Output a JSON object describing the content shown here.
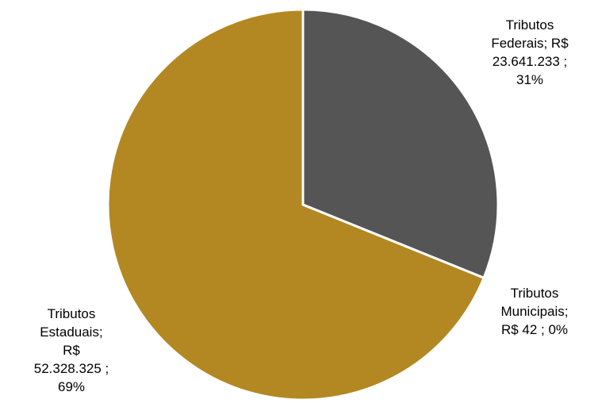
{
  "chart_data": {
    "type": "pie",
    "title": "",
    "series": [
      {
        "values": [
          {
            "category": "Tributos Federais",
            "value": 23641233,
            "percent": 31,
            "label": "Tributos\nFederais;  R$\n23.641.233 ;\n31%",
            "color": "#555555"
          },
          {
            "category": "Tributos Municipais",
            "value": 42,
            "percent": 0,
            "label": "Tributos\nMunicipais;\nR$ 42 ; 0%",
            "color": "#ffffff"
          },
          {
            "category": "Tributos Estaduais",
            "value": 52328325,
            "percent": 69,
            "label": "Tributos\nEstaduais;\nR$\n52.328.325 ;\n69%",
            "color": "#b38822"
          }
        ]
      }
    ],
    "start_angle": "12 o'clock, clockwise",
    "slice_border_color": "#ffffff",
    "legend": "none"
  }
}
